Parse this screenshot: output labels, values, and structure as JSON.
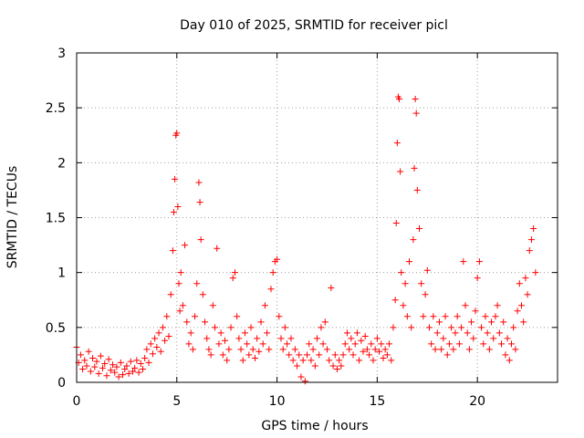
{
  "chart_data": {
    "type": "scatter",
    "title": "Day 010 of 2025, SRMTID for receiver picl",
    "xlabel": "GPS time / hours",
    "ylabel": "SRMTID / TECUs",
    "xlim": [
      0,
      24
    ],
    "ylim": [
      0,
      3
    ],
    "xticks": [
      0,
      5,
      10,
      15,
      20
    ],
    "xtick_labels": [
      "0",
      "5",
      "10",
      "15",
      "20"
    ],
    "yticks": [
      0,
      0.5,
      1,
      1.5,
      2,
      2.5,
      3
    ],
    "ytick_labels": [
      "0",
      "0.5",
      "1",
      "1.5",
      "2",
      "2.5",
      "3"
    ],
    "grid": true,
    "marker": "+",
    "color": "#ff0000",
    "series": [
      {
        "name": "SRMTID",
        "points": [
          [
            0.0,
            0.32
          ],
          [
            0.1,
            0.18
          ],
          [
            0.2,
            0.25
          ],
          [
            0.3,
            0.12
          ],
          [
            0.4,
            0.2
          ],
          [
            0.5,
            0.15
          ],
          [
            0.6,
            0.28
          ],
          [
            0.7,
            0.1
          ],
          [
            0.8,
            0.22
          ],
          [
            0.9,
            0.14
          ],
          [
            1.0,
            0.19
          ],
          [
            1.1,
            0.08
          ],
          [
            1.2,
            0.24
          ],
          [
            1.3,
            0.13
          ],
          [
            1.4,
            0.17
          ],
          [
            1.5,
            0.06
          ],
          [
            1.6,
            0.21
          ],
          [
            1.7,
            0.11
          ],
          [
            1.8,
            0.16
          ],
          [
            1.9,
            0.09
          ],
          [
            2.0,
            0.14
          ],
          [
            2.1,
            0.05
          ],
          [
            2.2,
            0.18
          ],
          [
            2.3,
            0.07
          ],
          [
            2.4,
            0.12
          ],
          [
            2.5,
            0.15
          ],
          [
            2.6,
            0.08
          ],
          [
            2.7,
            0.19
          ],
          [
            2.8,
            0.1
          ],
          [
            2.9,
            0.13
          ],
          [
            3.0,
            0.2
          ],
          [
            3.1,
            0.09
          ],
          [
            3.2,
            0.17
          ],
          [
            3.3,
            0.12
          ],
          [
            3.4,
            0.22
          ],
          [
            3.5,
            0.3
          ],
          [
            3.6,
            0.18
          ],
          [
            3.7,
            0.35
          ],
          [
            3.8,
            0.26
          ],
          [
            3.9,
            0.4
          ],
          [
            4.0,
            0.32
          ],
          [
            4.1,
            0.45
          ],
          [
            4.2,
            0.28
          ],
          [
            4.3,
            0.5
          ],
          [
            4.4,
            0.38
          ],
          [
            4.5,
            0.6
          ],
          [
            4.6,
            0.42
          ],
          [
            4.7,
            0.8
          ],
          [
            4.8,
            1.2
          ],
          [
            4.85,
            1.55
          ],
          [
            4.9,
            1.85
          ],
          [
            4.95,
            2.25
          ],
          [
            5.0,
            2.27
          ],
          [
            5.05,
            1.6
          ],
          [
            5.1,
            0.9
          ],
          [
            5.15,
            0.65
          ],
          [
            5.2,
            1.0
          ],
          [
            5.3,
            0.7
          ],
          [
            5.4,
            1.25
          ],
          [
            5.5,
            0.55
          ],
          [
            5.6,
            0.35
          ],
          [
            5.7,
            0.45
          ],
          [
            5.8,
            0.3
          ],
          [
            5.9,
            0.6
          ],
          [
            6.0,
            0.9
          ],
          [
            6.1,
            1.82
          ],
          [
            6.15,
            1.64
          ],
          [
            6.2,
            1.3
          ],
          [
            6.3,
            0.8
          ],
          [
            6.4,
            0.55
          ],
          [
            6.5,
            0.4
          ],
          [
            6.6,
            0.3
          ],
          [
            6.7,
            0.25
          ],
          [
            6.8,
            0.7
          ],
          [
            6.9,
            0.5
          ],
          [
            7.0,
            1.22
          ],
          [
            7.1,
            0.35
          ],
          [
            7.2,
            0.45
          ],
          [
            7.3,
            0.25
          ],
          [
            7.4,
            0.38
          ],
          [
            7.5,
            0.2
          ],
          [
            7.6,
            0.3
          ],
          [
            7.7,
            0.5
          ],
          [
            7.8,
            0.95
          ],
          [
            7.9,
            1.0
          ],
          [
            8.0,
            0.6
          ],
          [
            8.1,
            0.4
          ],
          [
            8.2,
            0.3
          ],
          [
            8.3,
            0.2
          ],
          [
            8.4,
            0.45
          ],
          [
            8.5,
            0.35
          ],
          [
            8.6,
            0.25
          ],
          [
            8.7,
            0.5
          ],
          [
            8.8,
            0.3
          ],
          [
            8.9,
            0.22
          ],
          [
            9.0,
            0.4
          ],
          [
            9.1,
            0.28
          ],
          [
            9.2,
            0.55
          ],
          [
            9.3,
            0.35
          ],
          [
            9.4,
            0.7
          ],
          [
            9.5,
            0.45
          ],
          [
            9.6,
            0.3
          ],
          [
            9.7,
            0.85
          ],
          [
            9.8,
            1.0
          ],
          [
            9.9,
            1.1
          ],
          [
            10.0,
            1.12
          ],
          [
            10.1,
            0.6
          ],
          [
            10.2,
            0.4
          ],
          [
            10.3,
            0.3
          ],
          [
            10.4,
            0.5
          ],
          [
            10.5,
            0.35
          ],
          [
            10.6,
            0.25
          ],
          [
            10.7,
            0.4
          ],
          [
            10.8,
            0.2
          ],
          [
            10.9,
            0.3
          ],
          [
            11.0,
            0.15
          ],
          [
            11.1,
            0.25
          ],
          [
            11.2,
            0.05
          ],
          [
            11.3,
            0.2
          ],
          [
            11.4,
            0.01
          ],
          [
            11.5,
            0.25
          ],
          [
            11.6,
            0.35
          ],
          [
            11.7,
            0.2
          ],
          [
            11.8,
            0.3
          ],
          [
            11.9,
            0.15
          ],
          [
            12.0,
            0.4
          ],
          [
            12.1,
            0.25
          ],
          [
            12.2,
            0.5
          ],
          [
            12.3,
            0.35
          ],
          [
            12.4,
            0.55
          ],
          [
            12.5,
            0.3
          ],
          [
            12.6,
            0.2
          ],
          [
            12.7,
            0.86
          ],
          [
            12.8,
            0.15
          ],
          [
            12.9,
            0.25
          ],
          [
            13.0,
            0.12
          ],
          [
            13.1,
            0.2
          ],
          [
            13.2,
            0.15
          ],
          [
            13.3,
            0.25
          ],
          [
            13.4,
            0.35
          ],
          [
            13.5,
            0.45
          ],
          [
            13.6,
            0.3
          ],
          [
            13.7,
            0.4
          ],
          [
            13.8,
            0.25
          ],
          [
            13.9,
            0.35
          ],
          [
            14.0,
            0.45
          ],
          [
            14.1,
            0.2
          ],
          [
            14.2,
            0.38
          ],
          [
            14.3,
            0.28
          ],
          [
            14.4,
            0.42
          ],
          [
            14.5,
            0.3
          ],
          [
            14.6,
            0.25
          ],
          [
            14.7,
            0.35
          ],
          [
            14.8,
            0.2
          ],
          [
            14.9,
            0.3
          ],
          [
            15.0,
            0.4
          ],
          [
            15.1,
            0.28
          ],
          [
            15.2,
            0.35
          ],
          [
            15.3,
            0.22
          ],
          [
            15.4,
            0.3
          ],
          [
            15.5,
            0.25
          ],
          [
            15.6,
            0.35
          ],
          [
            15.7,
            0.2
          ],
          [
            15.8,
            0.5
          ],
          [
            15.9,
            0.75
          ],
          [
            15.95,
            1.45
          ],
          [
            16.0,
            2.18
          ],
          [
            16.05,
            2.6
          ],
          [
            16.1,
            2.58
          ],
          [
            16.15,
            1.92
          ],
          [
            16.2,
            1.0
          ],
          [
            16.3,
            0.7
          ],
          [
            16.4,
            0.9
          ],
          [
            16.5,
            0.6
          ],
          [
            16.6,
            1.1
          ],
          [
            16.7,
            0.5
          ],
          [
            16.8,
            1.3
          ],
          [
            16.85,
            1.95
          ],
          [
            16.9,
            2.58
          ],
          [
            16.95,
            2.45
          ],
          [
            17.0,
            1.75
          ],
          [
            17.1,
            1.4
          ],
          [
            17.2,
            0.9
          ],
          [
            17.3,
            0.6
          ],
          [
            17.4,
            0.8
          ],
          [
            17.5,
            1.02
          ],
          [
            17.6,
            0.5
          ],
          [
            17.7,
            0.35
          ],
          [
            17.8,
            0.6
          ],
          [
            17.9,
            0.3
          ],
          [
            18.0,
            0.45
          ],
          [
            18.1,
            0.55
          ],
          [
            18.2,
            0.3
          ],
          [
            18.3,
            0.4
          ],
          [
            18.4,
            0.6
          ],
          [
            18.5,
            0.25
          ],
          [
            18.6,
            0.35
          ],
          [
            18.7,
            0.5
          ],
          [
            18.8,
            0.3
          ],
          [
            18.9,
            0.45
          ],
          [
            19.0,
            0.6
          ],
          [
            19.1,
            0.35
          ],
          [
            19.2,
            0.5
          ],
          [
            19.3,
            1.1
          ],
          [
            19.4,
            0.7
          ],
          [
            19.5,
            0.45
          ],
          [
            19.6,
            0.3
          ],
          [
            19.7,
            0.55
          ],
          [
            19.8,
            0.4
          ],
          [
            19.9,
            0.65
          ],
          [
            20.0,
            0.95
          ],
          [
            20.1,
            1.1
          ],
          [
            20.2,
            0.5
          ],
          [
            20.3,
            0.35
          ],
          [
            20.4,
            0.6
          ],
          [
            20.5,
            0.45
          ],
          [
            20.6,
            0.3
          ],
          [
            20.7,
            0.55
          ],
          [
            20.8,
            0.4
          ],
          [
            20.9,
            0.6
          ],
          [
            21.0,
            0.7
          ],
          [
            21.1,
            0.45
          ],
          [
            21.2,
            0.35
          ],
          [
            21.3,
            0.55
          ],
          [
            21.4,
            0.25
          ],
          [
            21.5,
            0.4
          ],
          [
            21.6,
            0.2
          ],
          [
            21.7,
            0.35
          ],
          [
            21.8,
            0.5
          ],
          [
            21.9,
            0.3
          ],
          [
            22.0,
            0.65
          ],
          [
            22.1,
            0.9
          ],
          [
            22.2,
            0.7
          ],
          [
            22.3,
            0.55
          ],
          [
            22.4,
            0.95
          ],
          [
            22.5,
            0.8
          ],
          [
            22.6,
            1.2
          ],
          [
            22.7,
            1.3
          ],
          [
            22.8,
            1.4
          ],
          [
            22.9,
            1.0
          ]
        ]
      }
    ]
  }
}
